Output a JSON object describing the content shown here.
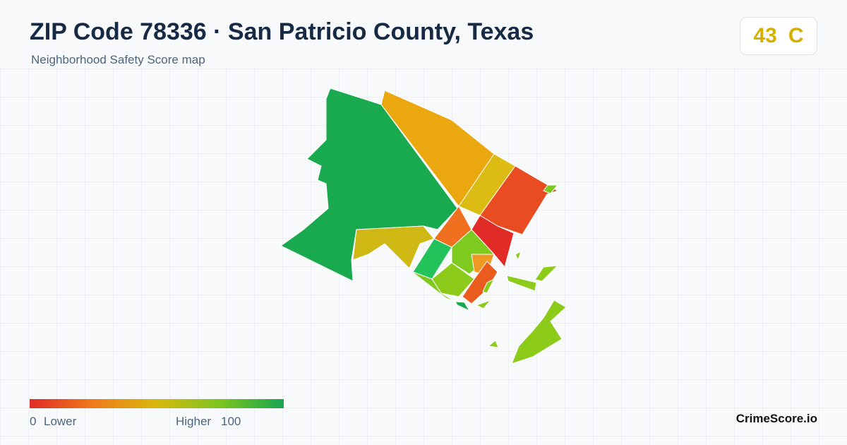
{
  "header": {
    "title": "ZIP Code 78336 · San Patricio County, Texas",
    "subtitle": "Neighborhood Safety Score map"
  },
  "score": {
    "value": 43,
    "grade": "C"
  },
  "legend": {
    "min": 0,
    "min_label": "Lower",
    "max_label": "Higher",
    "max": 100
  },
  "brand": "CrimeScore.io"
}
